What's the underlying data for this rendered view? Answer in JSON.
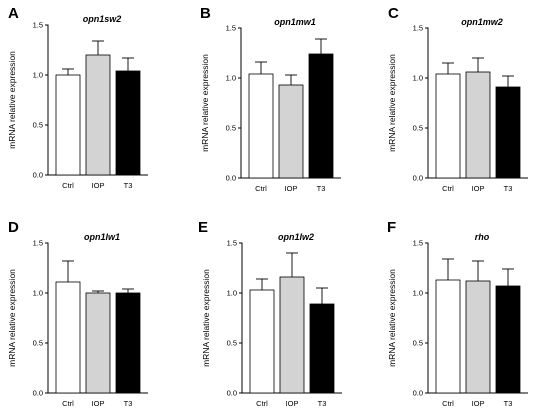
{
  "chart_data": [
    {
      "type": "bar",
      "panel": "A",
      "title": "opn1sw2",
      "categories": [
        "Ctrl",
        "IOP",
        "T3"
      ],
      "values": [
        1.0,
        1.2,
        1.04
      ],
      "errors": [
        0.06,
        0.14,
        0.13
      ],
      "colors": [
        "#ffffff",
        "#d3d3d3",
        "#000000"
      ],
      "ylabel": "mRNA relative expression",
      "ylim": [
        0,
        1.5
      ],
      "yticks": [
        "0.0",
        "0.5",
        "1.0",
        "1.5"
      ]
    },
    {
      "type": "bar",
      "panel": "B",
      "title": "opn1mw1",
      "categories": [
        "Ctrl",
        "IOP",
        "T3"
      ],
      "values": [
        1.04,
        0.93,
        1.24
      ],
      "errors": [
        0.12,
        0.1,
        0.15
      ],
      "colors": [
        "#ffffff",
        "#d3d3d3",
        "#000000"
      ],
      "ylabel": "mRNA relative expression",
      "ylim": [
        0,
        1.5
      ],
      "yticks": [
        "0.0",
        "0.5",
        "1.0",
        "1.5"
      ]
    },
    {
      "type": "bar",
      "panel": "C",
      "title": "opn1mw2",
      "categories": [
        "Ctrl",
        "IOP",
        "T3"
      ],
      "values": [
        1.04,
        1.06,
        0.91
      ],
      "errors": [
        0.11,
        0.14,
        0.11
      ],
      "colors": [
        "#ffffff",
        "#d3d3d3",
        "#000000"
      ],
      "ylabel": "mRNA relative expression",
      "ylim": [
        0,
        1.5
      ],
      "yticks": [
        "0.0",
        "0.5",
        "1.0",
        "1.5"
      ]
    },
    {
      "type": "bar",
      "panel": "D",
      "title": "opn1lw1",
      "categories": [
        "Ctrl",
        "IOP",
        "T3"
      ],
      "values": [
        1.11,
        1.0,
        1.0
      ],
      "errors": [
        0.21,
        0.02,
        0.04
      ],
      "colors": [
        "#ffffff",
        "#d3d3d3",
        "#000000"
      ],
      "ylabel": "mRNA relative expression",
      "ylim": [
        0,
        1.5
      ],
      "yticks": [
        "0.0",
        "0.5",
        "1.0",
        "1.5"
      ]
    },
    {
      "type": "bar",
      "panel": "E",
      "title": "opn1lw2",
      "categories": [
        "Ctrl",
        "IOP",
        "T3"
      ],
      "values": [
        1.03,
        1.16,
        0.89
      ],
      "errors": [
        0.11,
        0.24,
        0.16
      ],
      "colors": [
        "#ffffff",
        "#d3d3d3",
        "#000000"
      ],
      "ylabel": "mRNA relative expression",
      "ylim": [
        0,
        1.5
      ],
      "yticks": [
        "0.0",
        "0.5",
        "1.0",
        "1.5"
      ]
    },
    {
      "type": "bar",
      "panel": "F",
      "title": "rho",
      "categories": [
        "Ctrl",
        "IOP",
        "T3"
      ],
      "values": [
        1.13,
        1.12,
        1.07
      ],
      "errors": [
        0.21,
        0.2,
        0.17
      ],
      "colors": [
        "#ffffff",
        "#d3d3d3",
        "#000000"
      ],
      "ylabel": "mRNA relative expression",
      "ylim": [
        0,
        1.5
      ],
      "yticks": [
        "0.0",
        "0.5",
        "1.0",
        "1.5"
      ]
    }
  ]
}
